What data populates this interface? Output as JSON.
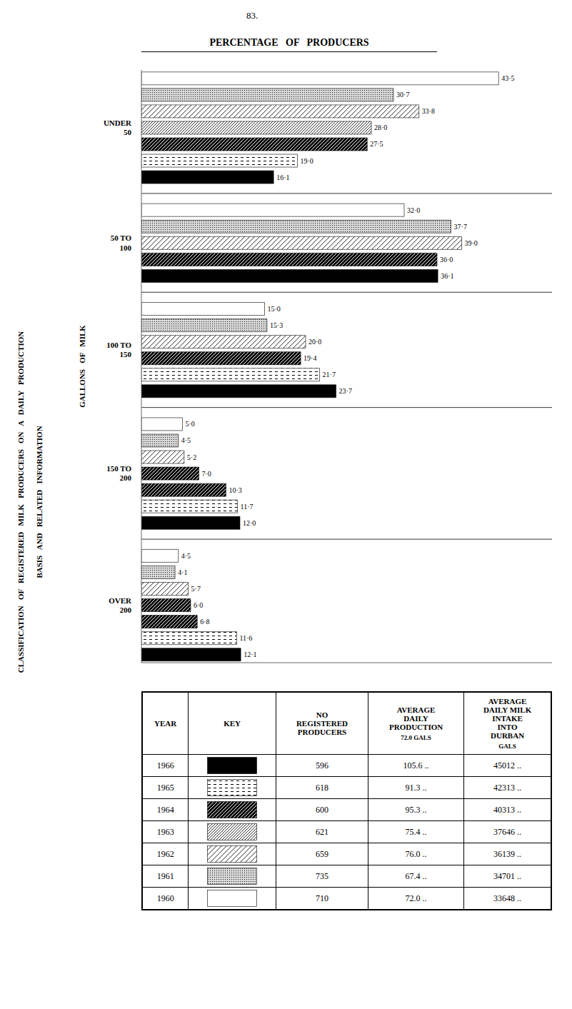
{
  "chart_data": {
    "type": "bar",
    "orientation": "horizontal",
    "title": "PERCENTAGE   OF   PRODUCERS",
    "ylabel": "GALLONS   OF   MILK",
    "annotations": [
      "83.",
      "CLASSIFICATION   OF   REGISTERED   MILK   PRODUCERS   ON   A   DAILY   PRODUCTION",
      "BASIS   AND   RELATED   INFORMATION"
    ],
    "xlim": [
      0,
      50
    ],
    "tick_labels": "y",
    "grid": false,
    "data_labels": true,
    "groups": [
      {
        "label": "UNDER\n50",
        "values": [
          43.5,
          30.7,
          33.8,
          28.0,
          27.5,
          19.0,
          16.1
        ],
        "value_labels": [
          "43·5",
          "30·7",
          "33·8",
          "28·0",
          "27·5",
          "19·0",
          "16·1"
        ],
        "keys": [
          "1960",
          "1961",
          "1962",
          "1963",
          "1964",
          "1965",
          "1966"
        ]
      },
      {
        "label": "50 TO\n100",
        "values": [
          32.0,
          37.7,
          39.0,
          36.0,
          36.1
        ],
        "value_labels": [
          "32·0",
          "37·7",
          "39·0",
          "36·0",
          "36·1"
        ],
        "keys": [
          "1960",
          "1961",
          "1962",
          "1964",
          "1966"
        ]
      },
      {
        "label": "100 TO\n150",
        "values": [
          15.0,
          15.3,
          20.0,
          19.4,
          21.7,
          23.7
        ],
        "value_labels": [
          "15·0",
          "15·3",
          "20·0",
          "19·4",
          "21·7",
          "23·7"
        ],
        "keys": [
          "1960",
          "1961",
          "1962",
          "1964",
          "1965",
          "1966"
        ]
      },
      {
        "label": "150 TO\n200",
        "values": [
          5.0,
          4.5,
          5.2,
          7.0,
          10.3,
          11.7,
          12.0
        ],
        "value_labels": [
          "5·0",
          "4·5",
          "5·2",
          "7·0",
          "10·3",
          "11·7",
          "12·0"
        ],
        "keys": [
          "1960",
          "1961",
          "1962",
          "1964",
          "1964",
          "1965",
          "1966"
        ]
      },
      {
        "label": "OVER\n200",
        "values": [
          4.5,
          4.1,
          5.7,
          6.0,
          6.8,
          11.6,
          12.1
        ],
        "value_labels": [
          "4·5",
          "4·1",
          "5·7",
          "6·0",
          "6·8",
          "11·6",
          "12·1"
        ],
        "keys": [
          "1960",
          "1961",
          "1962",
          "1964",
          "1964",
          "1965",
          "1966"
        ]
      }
    ],
    "table": {
      "columns": [
        {
          "label": "YEAR"
        },
        {
          "label": "KEY"
        },
        {
          "label": "NO\nREGISTERED\nPRODUCERS"
        },
        {
          "label": "AVERAGE\nDAILY\nPRODUCTION",
          "note": "72.0 GALS"
        },
        {
          "label": "AVERAGE\nDAILY MILK\nINTAKE\nINTO\nDURBAN",
          "note": "GALS"
        }
      ],
      "years": [
        "1966",
        "1965",
        "1964",
        "1963",
        "1962",
        "1961",
        "1960"
      ],
      "no_reg": [
        "596",
        "618",
        "600",
        "621",
        "659",
        "735",
        "710"
      ],
      "avg_prod": [
        "105.6 ..",
        "91.3 ..",
        "95.3 ..",
        "75.4 ..",
        "76.0 ..",
        "67.4 ..",
        "72.0 .."
      ],
      "avg_intake": [
        "45012 ..",
        "42313 ..",
        "40313 ..",
        "37646 ..",
        "36139 ..",
        "34701 ..",
        "33648 .."
      ]
    }
  }
}
